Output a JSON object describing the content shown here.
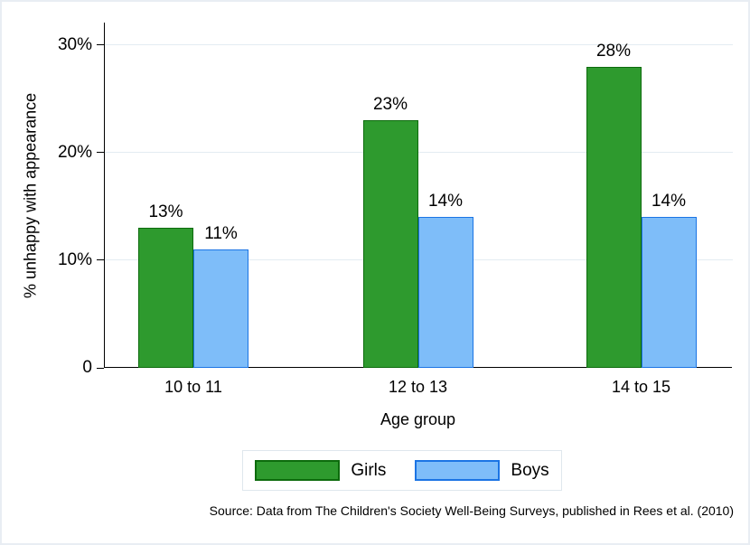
{
  "chart_data": {
    "type": "bar",
    "title": "",
    "categories": [
      "10 to 11",
      "12 to 13",
      "14 to 15"
    ],
    "series": [
      {
        "name": "Girls",
        "values": [
          13,
          23,
          28
        ],
        "labels": [
          "13%",
          "23%",
          "28%"
        ],
        "fill": "#2e9a2e",
        "stroke": "#0d6b0d"
      },
      {
        "name": "Boys",
        "values": [
          11,
          14,
          14
        ],
        "labels": [
          "11%",
          "14%",
          "14%"
        ],
        "fill": "#7ebdf9",
        "stroke": "#1b74e4"
      }
    ],
    "xlabel": "Age group",
    "ylabel": "% unhappy with appearance",
    "yticks": [
      {
        "value": 0,
        "label": "0"
      },
      {
        "value": 10,
        "label": "10%"
      },
      {
        "value": 20,
        "label": "20%"
      },
      {
        "value": 30,
        "label": "30%"
      }
    ],
    "ylim": [
      0,
      32.1
    ],
    "grid": true,
    "legend_position": "bottom"
  },
  "source": "Source: Data from The Children's Society Well-Being Surveys, published in Rees et al. (2010)",
  "colors": {
    "grid": "#e3ecf2",
    "axis": "#000000",
    "frame": "#e8edf3",
    "background": "#ffffff"
  }
}
